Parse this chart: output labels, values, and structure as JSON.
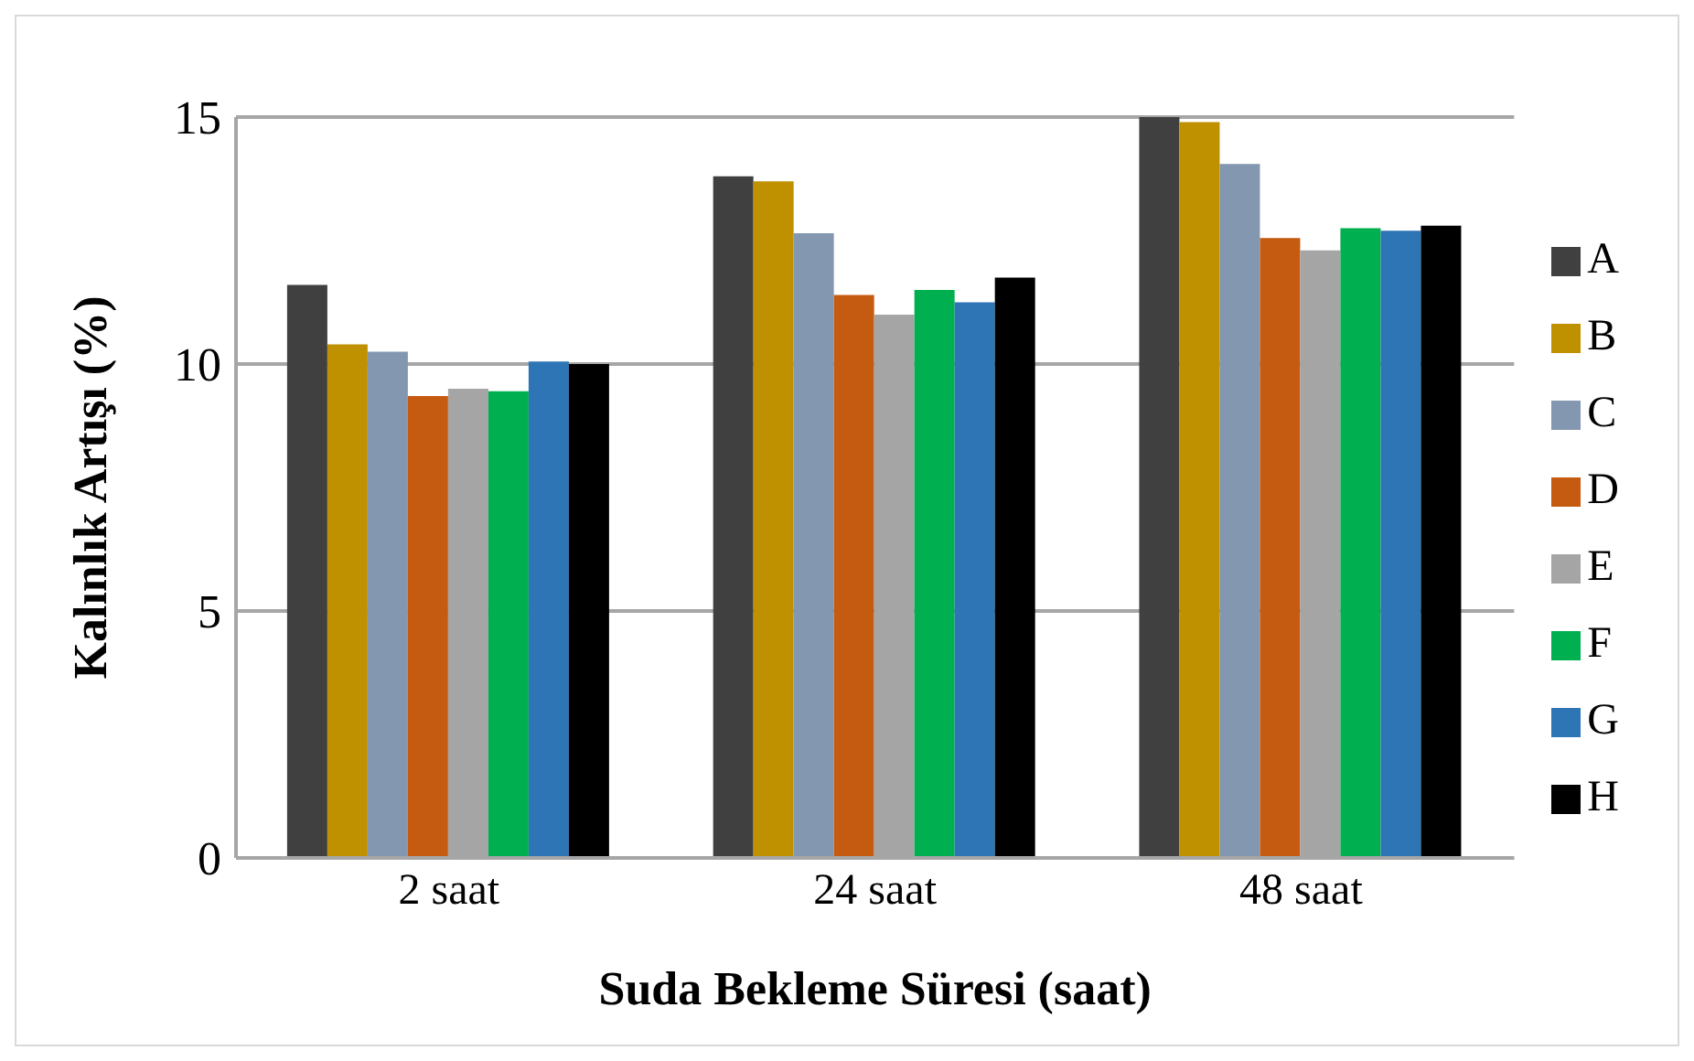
{
  "chart_data": {
    "type": "bar",
    "xlabel": "Suda Bekleme Süresi (saat)",
    "ylabel": "Kalınlık Artışı (%)",
    "categories": [
      "2 saat",
      "24 saat",
      "48 saat"
    ],
    "series": [
      {
        "name": "A",
        "color": "#404040",
        "values": [
          11.6,
          13.8,
          15.0
        ]
      },
      {
        "name": "B",
        "color": "#bf9000",
        "values": [
          10.4,
          13.7,
          14.9
        ]
      },
      {
        "name": "C",
        "color": "#8497b0",
        "values": [
          10.25,
          12.65,
          14.05
        ]
      },
      {
        "name": "D",
        "color": "#c55a11",
        "values": [
          9.35,
          11.4,
          12.55
        ]
      },
      {
        "name": "E",
        "color": "#a5a5a5",
        "values": [
          9.5,
          11.0,
          12.3
        ]
      },
      {
        "name": "F",
        "color": "#00b050",
        "values": [
          9.45,
          11.5,
          12.75
        ]
      },
      {
        "name": "G",
        "color": "#2e75b6",
        "values": [
          10.05,
          11.25,
          12.7
        ]
      },
      {
        "name": "H",
        "color": "#000000",
        "values": [
          10.0,
          11.75,
          12.8
        ]
      }
    ],
    "ylim": [
      0,
      15
    ],
    "yticks": [
      0,
      5,
      10,
      15
    ],
    "grid": "y",
    "legend": "right"
  }
}
